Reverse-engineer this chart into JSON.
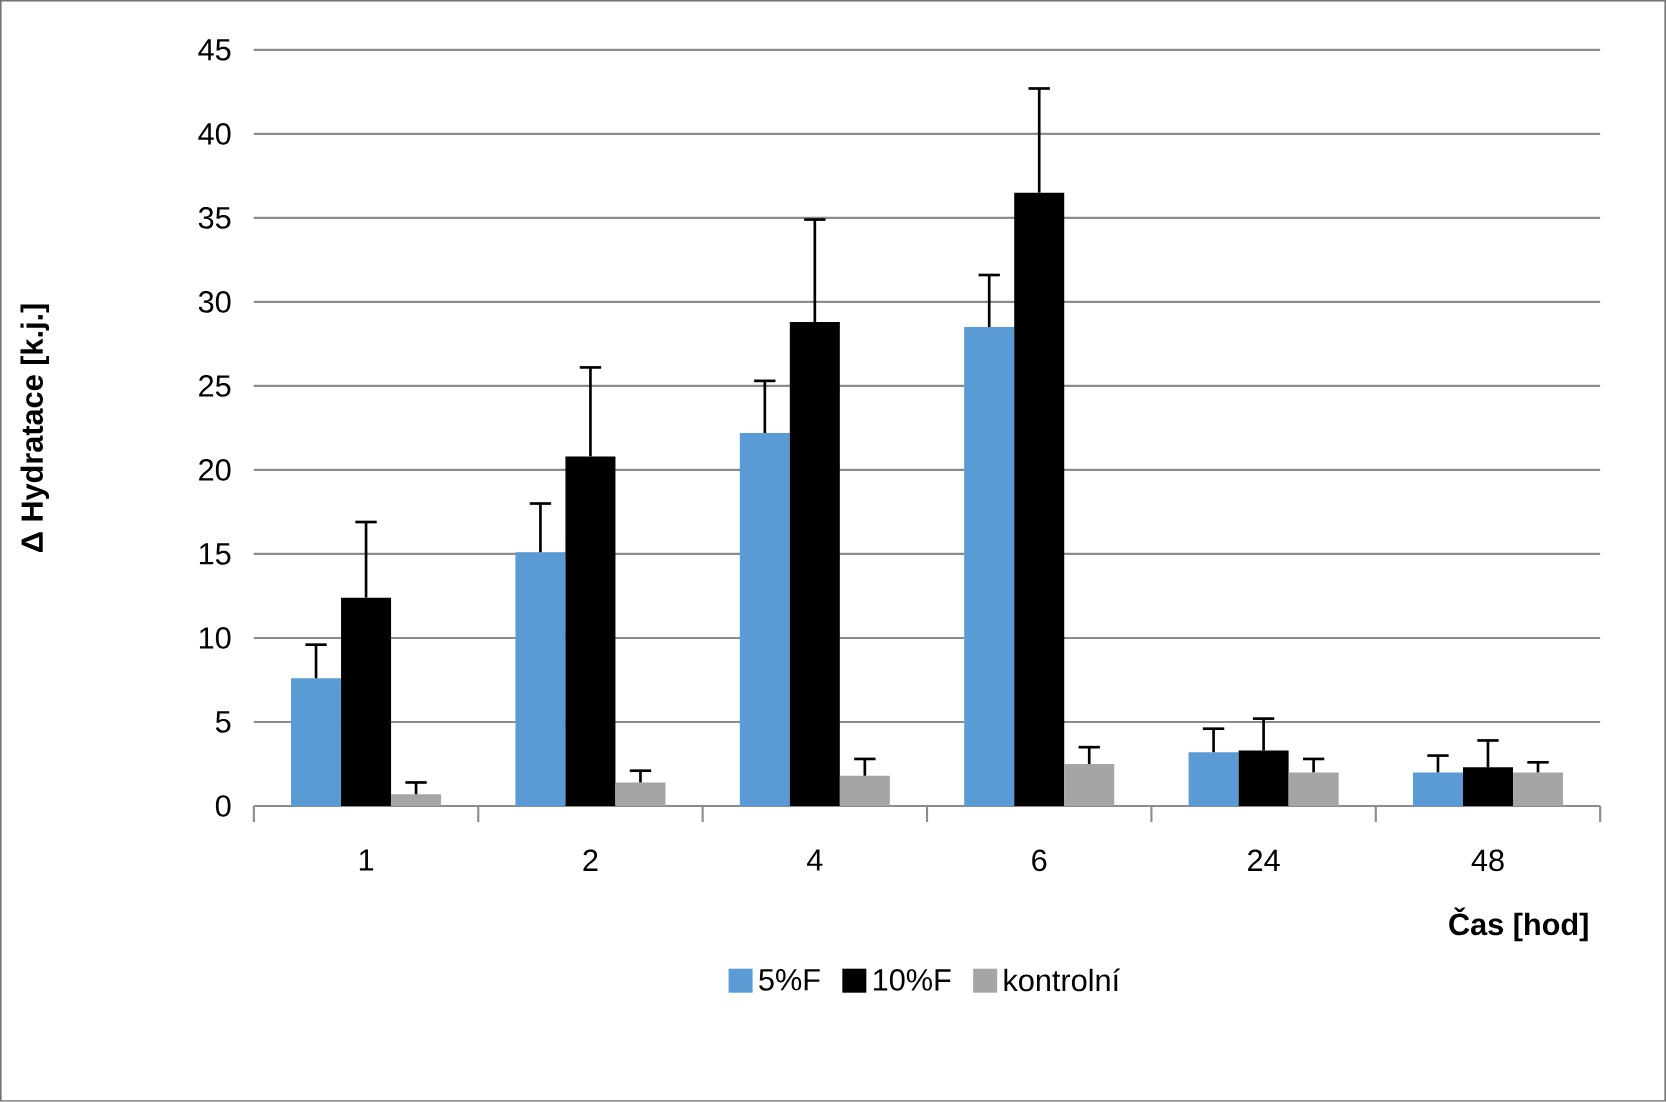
{
  "chart_data": {
    "type": "bar",
    "xlabel": "Čas [hod]",
    "ylabel": "Δ Hydratace [k.j.]",
    "categories": [
      "1",
      "2",
      "4",
      "6",
      "24",
      "48"
    ],
    "series": [
      {
        "name": "5%F",
        "color": "#5b9bd5",
        "values": [
          7.6,
          15.1,
          22.2,
          28.5,
          3.2,
          2.0
        ],
        "errors": [
          [
            7.6,
            9.6
          ],
          [
            15.1,
            18.0
          ],
          [
            22.2,
            25.3
          ],
          [
            28.5,
            31.6
          ],
          [
            3.2,
            4.6
          ],
          [
            2.0,
            3.0
          ]
        ]
      },
      {
        "name": "10%F",
        "color": "#000000",
        "values": [
          12.4,
          20.8,
          28.8,
          36.5,
          3.3,
          2.3
        ],
        "errors": [
          [
            12.4,
            16.9
          ],
          [
            20.8,
            26.1
          ],
          [
            28.8,
            34.9
          ],
          [
            36.5,
            42.7
          ],
          [
            3.3,
            5.2
          ],
          [
            2.3,
            3.9
          ]
        ]
      },
      {
        "name": "kontrolní",
        "color": "#a5a5a5",
        "values": [
          0.7,
          1.4,
          1.8,
          2.5,
          2.0,
          2.0
        ],
        "errors": [
          [
            0.7,
            1.4
          ],
          [
            1.4,
            2.1
          ],
          [
            1.8,
            2.8
          ],
          [
            2.5,
            3.5
          ],
          [
            2.0,
            2.8
          ],
          [
            2.0,
            2.6
          ]
        ]
      }
    ],
    "ylim": [
      0,
      45
    ],
    "yticks": [
      0,
      5,
      10,
      15,
      20,
      25,
      30,
      35,
      40,
      45
    ],
    "grid": "y",
    "legend": "bottom"
  }
}
